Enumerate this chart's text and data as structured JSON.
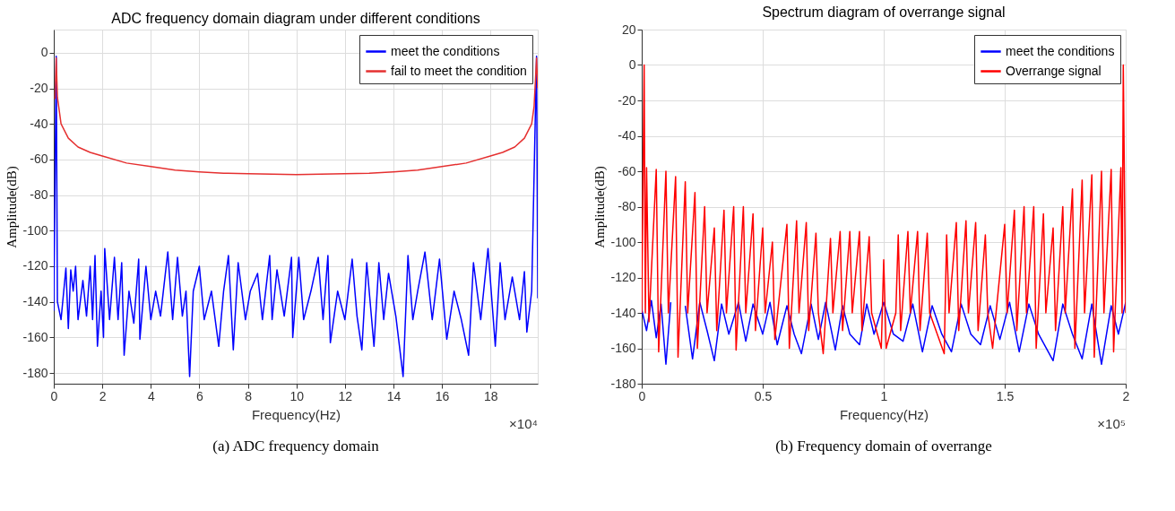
{
  "chart_data": [
    {
      "type": "line",
      "title": "ADC frequency domain diagram under different conditions",
      "xlabel": "Frequency(Hz)",
      "ylabel": "Amplitude(dB)",
      "xlim": [
        0,
        19.95
      ],
      "ylim": [
        -186,
        13
      ],
      "xticks": [
        0,
        2,
        4,
        6,
        8,
        10,
        12,
        14,
        16,
        18
      ],
      "yticks": [
        -180,
        -160,
        -140,
        -120,
        -100,
        -80,
        -60,
        -40,
        -20,
        0
      ],
      "grid": true,
      "legend": "top right",
      "annotations": [
        "×10⁴",
        "(a) ADC frequency domain"
      ],
      "series": [
        {
          "name": "meet the conditions",
          "color": "#0000ff",
          "x": [
            0,
            0.1,
            0.15,
            0.3,
            0.5,
            0.6,
            0.7,
            0.8,
            0.9,
            1.0,
            1.2,
            1.35,
            1.5,
            1.6,
            1.7,
            1.8,
            1.95,
            2.05,
            2.1,
            2.3,
            2.5,
            2.65,
            2.8,
            2.9,
            3.1,
            3.3,
            3.5,
            3.55,
            3.8,
            4.0,
            4.2,
            4.4,
            4.7,
            4.9,
            5.1,
            5.3,
            5.45,
            5.6,
            5.75,
            6.0,
            6.2,
            6.5,
            6.8,
            7.0,
            7.2,
            7.4,
            7.6,
            7.9,
            8.1,
            8.4,
            8.6,
            8.9,
            9.0,
            9.2,
            9.5,
            9.8,
            9.85,
            10.1,
            10.3,
            10.6,
            10.9,
            11.1,
            11.3,
            11.4,
            11.7,
            12.0,
            12.3,
            12.5,
            12.7,
            12.9,
            13.2,
            13.4,
            13.6,
            13.8,
            14.1,
            14.4,
            14.6,
            14.8,
            15.0,
            15.3,
            15.6,
            15.9,
            16.2,
            16.5,
            16.8,
            17.1,
            17.3,
            17.6,
            17.9,
            18.2,
            18.4,
            18.6,
            18.9,
            19.2,
            19.4,
            19.5,
            19.7,
            19.9,
            19.95
          ],
          "values": [
            -145,
            -2,
            -140,
            -150,
            -121,
            -155,
            -122,
            -134,
            -120,
            -150,
            -128,
            -148,
            -120,
            -150,
            -114,
            -165,
            -134,
            -160,
            -110,
            -150,
            -115,
            -150,
            -118,
            -170,
            -134,
            -152,
            -116,
            -161,
            -120,
            -150,
            -134,
            -148,
            -112,
            -150,
            -115,
            -148,
            -134,
            -182,
            -134,
            -120,
            -150,
            -134,
            -165,
            -134,
            -114,
            -167,
            -118,
            -150,
            -134,
            -124,
            -150,
            -114,
            -150,
            -122,
            -148,
            -115,
            -160,
            -115,
            -150,
            -134,
            -115,
            -150,
            -114,
            -163,
            -134,
            -150,
            -116,
            -148,
            -167,
            -118,
            -165,
            -118,
            -150,
            -124,
            -148,
            -182,
            -114,
            -150,
            -134,
            -112,
            -150,
            -116,
            -161,
            -134,
            -150,
            -170,
            -118,
            -150,
            -110,
            -165,
            -118,
            -150,
            -126,
            -150,
            -123,
            -157,
            -134,
            -2,
            -138
          ]
        },
        {
          "name": "fail to meet the condition",
          "color": "#e53030",
          "x": [
            0.05,
            0.1,
            0.15,
            0.3,
            0.6,
            1,
            1.5,
            2,
            3,
            4,
            5,
            6,
            7,
            8,
            10,
            12,
            13,
            14,
            15,
            16,
            17,
            18,
            18.5,
            19,
            19.4,
            19.7,
            19.8,
            19.9,
            19.95
          ],
          "values": [
            -26,
            -3,
            -25,
            -40,
            -48,
            -53,
            -56,
            -58,
            -62,
            -64,
            -66,
            -67,
            -67.7,
            -68,
            -68.5,
            -68,
            -67.7,
            -67,
            -66,
            -64,
            -62,
            -58,
            -56,
            -53,
            -48,
            -40,
            -30,
            -3,
            -20
          ]
        }
      ]
    },
    {
      "type": "line",
      "title": "Spectrum diagram of overrange signal",
      "xlabel": "Frequency(Hz)",
      "ylabel": "Amplitude(dB)",
      "xlim": [
        0,
        2
      ],
      "ylim": [
        -180,
        20
      ],
      "xticks": [
        0,
        0.5,
        1,
        1.5,
        2
      ],
      "yticks": [
        -180,
        -160,
        -140,
        -120,
        -100,
        -80,
        -60,
        -40,
        -20,
        0,
        20
      ],
      "grid": true,
      "legend": "top right",
      "annotations": [
        "×10⁵",
        "(b) Frequency domain of overrange"
      ],
      "series": [
        {
          "name": "meet the conditions",
          "color": "#0000ff",
          "x": [
            0,
            0.02,
            0.04,
            0.06,
            0.08,
            0.1,
            0.12,
            0.15,
            0.18,
            0.21,
            0.24,
            0.27,
            0.3,
            0.33,
            0.36,
            0.4,
            0.43,
            0.46,
            0.5,
            0.53,
            0.56,
            0.6,
            0.63,
            0.66,
            0.7,
            0.73,
            0.76,
            0.8,
            0.83,
            0.86,
            0.9,
            0.93,
            0.96,
            1.0,
            1.04,
            1.08,
            1.12,
            1.16,
            1.2,
            1.24,
            1.28,
            1.32,
            1.36,
            1.4,
            1.44,
            1.48,
            1.52,
            1.56,
            1.6,
            1.64,
            1.7,
            1.74,
            1.78,
            1.82,
            1.86,
            1.9,
            1.94,
            1.97,
            2.0
          ],
          "values": [
            -138,
            -150,
            -133,
            -154,
            -135,
            -169,
            -134,
            null,
            -136,
            -166,
            -134,
            -150,
            -167,
            -135,
            -152,
            -134,
            -156,
            -135,
            -152,
            -134,
            -158,
            -136,
            -152,
            -163,
            -135,
            -155,
            -134,
            -161,
            -136,
            -152,
            -158,
            -135,
            -152,
            -134,
            -152,
            -156,
            -135,
            -162,
            -136,
            -152,
            -162,
            -135,
            -152,
            -158,
            -136,
            -155,
            -134,
            -162,
            -135,
            -152,
            -167,
            -135,
            -152,
            -166,
            -135,
            -169,
            -136,
            -152,
            -134
          ]
        },
        {
          "name": "Overrange signal",
          "color": "#ff0000",
          "x": [
            0,
            0.01,
            0.015,
            0.02,
            0.03,
            0.06,
            0.07,
            0.1,
            0.11,
            0.14,
            0.15,
            0.18,
            0.19,
            0.22,
            0.23,
            0.26,
            0.27,
            0.3,
            0.31,
            0.34,
            0.35,
            0.38,
            0.39,
            0.42,
            0.43,
            0.46,
            0.47,
            0.5,
            0.51,
            0.54,
            0.55,
            0.6,
            0.61,
            0.64,
            0.65,
            0.68,
            0.69,
            0.72,
            0.73,
            0.75,
            0.78,
            0.79,
            0.82,
            0.83,
            0.86,
            0.87,
            0.9,
            0.91,
            0.94,
            0.95,
            0.99,
            1.0,
            1.01,
            1.05,
            1.06,
            1.07,
            1.1,
            1.11,
            1.14,
            1.15,
            1.18,
            1.19,
            1.25,
            1.26,
            1.27,
            1.3,
            1.31,
            1.34,
            1.35,
            1.38,
            1.39,
            1.42,
            1.43,
            1.45,
            1.5,
            1.51,
            1.54,
            1.55,
            1.58,
            1.59,
            1.62,
            1.63,
            1.66,
            1.67,
            1.7,
            1.71,
            1.74,
            1.75,
            1.78,
            1.79,
            1.82,
            1.83,
            1.86,
            1.87,
            1.9,
            1.91,
            1.94,
            1.95,
            1.98,
            1.985,
            1.99,
            2.0
          ],
          "values": [
            -140,
            0,
            -140,
            -58,
            -145,
            -59,
            -162,
            -60,
            -140,
            -63,
            -165,
            -66,
            -140,
            -72,
            -160,
            -80,
            -140,
            -92,
            -150,
            -82,
            -140,
            -80,
            -161,
            -80,
            -140,
            -84,
            -150,
            -92,
            -140,
            -100,
            -155,
            -90,
            -160,
            -88,
            -140,
            -89,
            -150,
            -95,
            -140,
            -163,
            -98,
            -140,
            -94,
            -150,
            -94,
            -140,
            -94,
            -150,
            -97,
            -140,
            -160,
            -110,
            -160,
            -140,
            -96,
            -150,
            -94,
            -140,
            -94,
            -150,
            -95,
            -140,
            -163,
            -96,
            -140,
            -89,
            -150,
            -88,
            -140,
            -89,
            -150,
            -96,
            -140,
            -160,
            -90,
            -140,
            -82,
            -150,
            -80,
            -140,
            -80,
            -160,
            -84,
            -140,
            -92,
            -150,
            -80,
            -140,
            -70,
            -160,
            -65,
            -140,
            -62,
            -165,
            -60,
            -140,
            -59,
            -162,
            -58,
            -140,
            0,
            -140
          ]
        }
      ]
    }
  ]
}
